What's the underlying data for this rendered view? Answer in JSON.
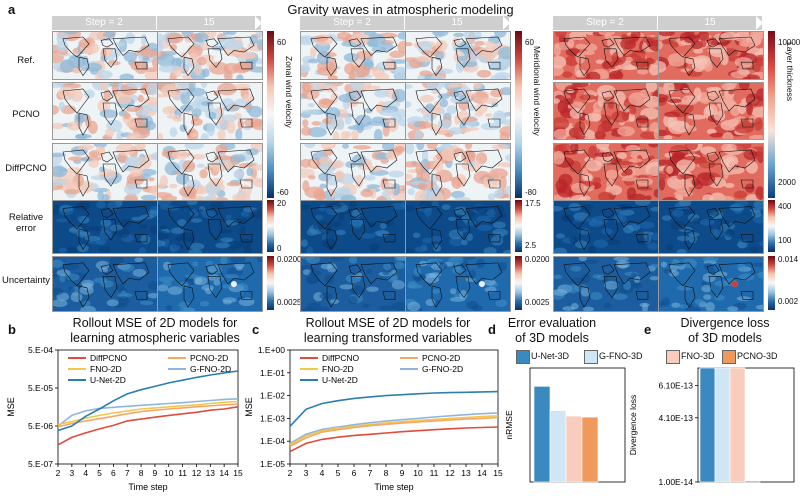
{
  "figure": {
    "panel_a_letter": "a",
    "title": "Gravity waves in atmospheric modeling",
    "step_header_left": "Step = 2",
    "step_header_right": "15",
    "row_labels": [
      "Ref.",
      "PCNO",
      "DiffPCNO",
      "Relative error",
      "Uncertainty"
    ],
    "blocks": [
      {
        "variable": "Zonal wind velocity",
        "top_max": "60",
        "top_min": "-60",
        "err_max": "20",
        "err_min": "0",
        "unc_max": "0.0200",
        "unc_min": "0.0025",
        "colormap_top": "diverging-blue-red"
      },
      {
        "variable": "Meridional wind velocity",
        "top_max": "60",
        "top_min": "-80",
        "err_max": "17.5",
        "err_min": "2.5",
        "unc_max": "0.0200",
        "unc_min": "0.0025",
        "colormap_top": "diverging-blue-red"
      },
      {
        "variable": "Layer thickness",
        "top_max": "10000",
        "top_min": "2000",
        "err_max": "400",
        "err_min": "100",
        "unc_max": "0.014",
        "unc_min": "0.002",
        "colormap_top": "red-dominant"
      }
    ],
    "colors": {
      "DiffPCNO": "#e04b3c",
      "PCNO-2D": "#f3a86a",
      "FNO-2D": "#f2c84b",
      "G-FNO-2D": "#8fb5e0",
      "U-Net-2D": "#2a7fb0",
      "U-Net-3D": "#3a8ac0",
      "G-FNO-3D": "#cfe6f6",
      "FNO-3D": "#f8cdbd",
      "PCNO-3D": "#ef9a5c"
    }
  },
  "chart_data": [
    {
      "panel": "b",
      "type": "line",
      "title": "Rollout MSE of 2D models for learning atmospheric variables",
      "title_lines": [
        "Rollout MSE of 2D models for",
        "learning atmospheric variables"
      ],
      "xlabel": "Time step",
      "ylabel": "MSE",
      "yscale": "log",
      "ylim": [
        5e-07,
        0.0005
      ],
      "yticks": [
        5e-07,
        5e-06,
        5e-05,
        0.0005
      ],
      "ytick_labels": [
        "5.E-07",
        "5.E-06",
        "5.E-05",
        "5.E-04"
      ],
      "x": [
        2,
        3,
        4,
        5,
        6,
        7,
        8,
        9,
        10,
        11,
        12,
        13,
        14,
        15
      ],
      "legend": [
        "DiffPCNO",
        "PCNO-2D",
        "FNO-2D",
        "G-FNO-2D",
        "U-Net-2D"
      ],
      "series": [
        {
          "name": "DiffPCNO",
          "values": [
            1.6e-06,
            2.5e-06,
            3.3e-06,
            4.2e-06,
            5.2e-06,
            6.8e-06,
            7.6e-06,
            8.5e-06,
            9.5e-06,
            1.05e-05,
            1.15e-05,
            1.3e-05,
            1.4e-05,
            1.6e-05
          ]
        },
        {
          "name": "PCNO-2D",
          "values": [
            4.8e-06,
            5.8e-06,
            6.8e-06,
            7.8e-06,
            9e-06,
            1.05e-05,
            1.2e-05,
            1.3e-05,
            1.4e-05,
            1.5e-05,
            1.6e-05,
            1.7e-05,
            1.8e-05,
            1.9e-05
          ]
        },
        {
          "name": "FNO-2D",
          "values": [
            5.5e-06,
            6.5e-06,
            8e-06,
            9.5e-06,
            1.1e-05,
            1.25e-05,
            1.4e-05,
            1.5e-05,
            1.6e-05,
            1.7e-05,
            1.8e-05,
            1.95e-05,
            2.1e-05,
            2.2e-05
          ]
        },
        {
          "name": "G-FNO-2D",
          "values": [
            5e-06,
            9.5e-06,
            1.25e-05,
            1.45e-05,
            1.55e-05,
            1.65e-05,
            1.75e-05,
            1.85e-05,
            1.95e-05,
            2.05e-05,
            2.2e-05,
            2.35e-05,
            2.5e-05,
            2.6e-05
          ]
        },
        {
          "name": "U-Net-2D",
          "values": [
            3.8e-06,
            5e-06,
            9e-06,
            1.4e-05,
            2.3e-05,
            3.5e-05,
            4.5e-05,
            5.5e-05,
            6.8e-05,
            8e-05,
            9.5e-05,
            0.00011,
            0.000125,
            0.00014
          ]
        }
      ]
    },
    {
      "panel": "c",
      "type": "line",
      "title": "Rollout MSE of 2D models for learning transformed variables",
      "title_lines": [
        "Rollout MSE of 2D models for",
        "learning transformed variables"
      ],
      "xlabel": "Time step",
      "ylabel": "MSE",
      "yscale": "log",
      "ylim": [
        1e-05,
        1
      ],
      "yticks": [
        1e-05,
        0.0001,
        0.001,
        0.01,
        0.1,
        1
      ],
      "ytick_labels": [
        "1.E-05",
        "1.E-04",
        "1.E-03",
        "1.E-02",
        "1.E-01",
        "1.E+00"
      ],
      "x": [
        2,
        3,
        4,
        5,
        6,
        7,
        8,
        9,
        10,
        11,
        12,
        13,
        14,
        15
      ],
      "legend": [
        "DiffPCNO",
        "PCNO-2D",
        "FNO-2D",
        "G-FNO-2D",
        "U-Net-2D"
      ],
      "series": [
        {
          "name": "DiffPCNO",
          "values": [
            3.5e-05,
            8e-05,
            0.00012,
            0.00015,
            0.00018,
            0.0002,
            0.00023,
            0.00026,
            0.00029,
            0.00032,
            0.00035,
            0.00038,
            0.0004,
            0.00042
          ]
        },
        {
          "name": "PCNO-2D",
          "values": [
            6e-05,
            0.00014,
            0.00025,
            0.00032,
            0.0004,
            0.00048,
            0.00055,
            0.00062,
            0.0007,
            0.00078,
            0.00085,
            0.00093,
            0.001,
            0.0011
          ]
        },
        {
          "name": "FNO-2D",
          "values": [
            7e-05,
            0.00017,
            0.00029,
            0.00037,
            0.00045,
            0.00054,
            0.00062,
            0.00072,
            0.00081,
            0.0009,
            0.001,
            0.0011,
            0.0012,
            0.0013
          ]
        },
        {
          "name": "G-FNO-2D",
          "values": [
            8e-05,
            0.0002,
            0.00033,
            0.00042,
            0.00053,
            0.00065,
            0.00076,
            0.00088,
            0.001,
            0.00115,
            0.0013,
            0.00145,
            0.0016,
            0.00175
          ]
        },
        {
          "name": "U-Net-2D",
          "values": [
            0.00045,
            0.0025,
            0.0045,
            0.006,
            0.0075,
            0.0088,
            0.01,
            0.011,
            0.012,
            0.013,
            0.0135,
            0.014,
            0.0145,
            0.015
          ]
        }
      ]
    },
    {
      "panel": "d",
      "type": "bar",
      "title": "Error evaluation of 3D models",
      "title_lines": [
        "Error evaluation",
        "of 3D models"
      ],
      "ylabel": "nRMSE",
      "ylim": [
        0,
        0.23
      ],
      "categories": [
        "U-Net-3D",
        "G-FNO-3D",
        "FNO-3D",
        "PCNO-3D"
      ],
      "values": [
        0.193,
        0.144,
        0.133,
        0.131
      ]
    },
    {
      "panel": "e",
      "type": "bar",
      "title": "Divergence loss of 3D models",
      "title_lines": [
        "Divergence loss",
        "of 3D models"
      ],
      "ylabel": "Divergence loss",
      "ylim": [
        1e-14,
        7.2e-13
      ],
      "yticks": [
        1e-14,
        4.1e-13,
        6.1e-13
      ],
      "ytick_labels": [
        "1.00E-14",
        "4.10E-13",
        "6.10E-13"
      ],
      "categories": [
        "U-Net-3D",
        "G-FNO-3D",
        "FNO-3D",
        "PCNO-3D"
      ],
      "values": [
        7.2e-13,
        7.2e-13,
        7.2e-13,
        1.8e-14
      ],
      "legend": [
        "U-Net-3D",
        "G-FNO-3D",
        "FNO-3D",
        "PCNO-3D"
      ]
    }
  ]
}
